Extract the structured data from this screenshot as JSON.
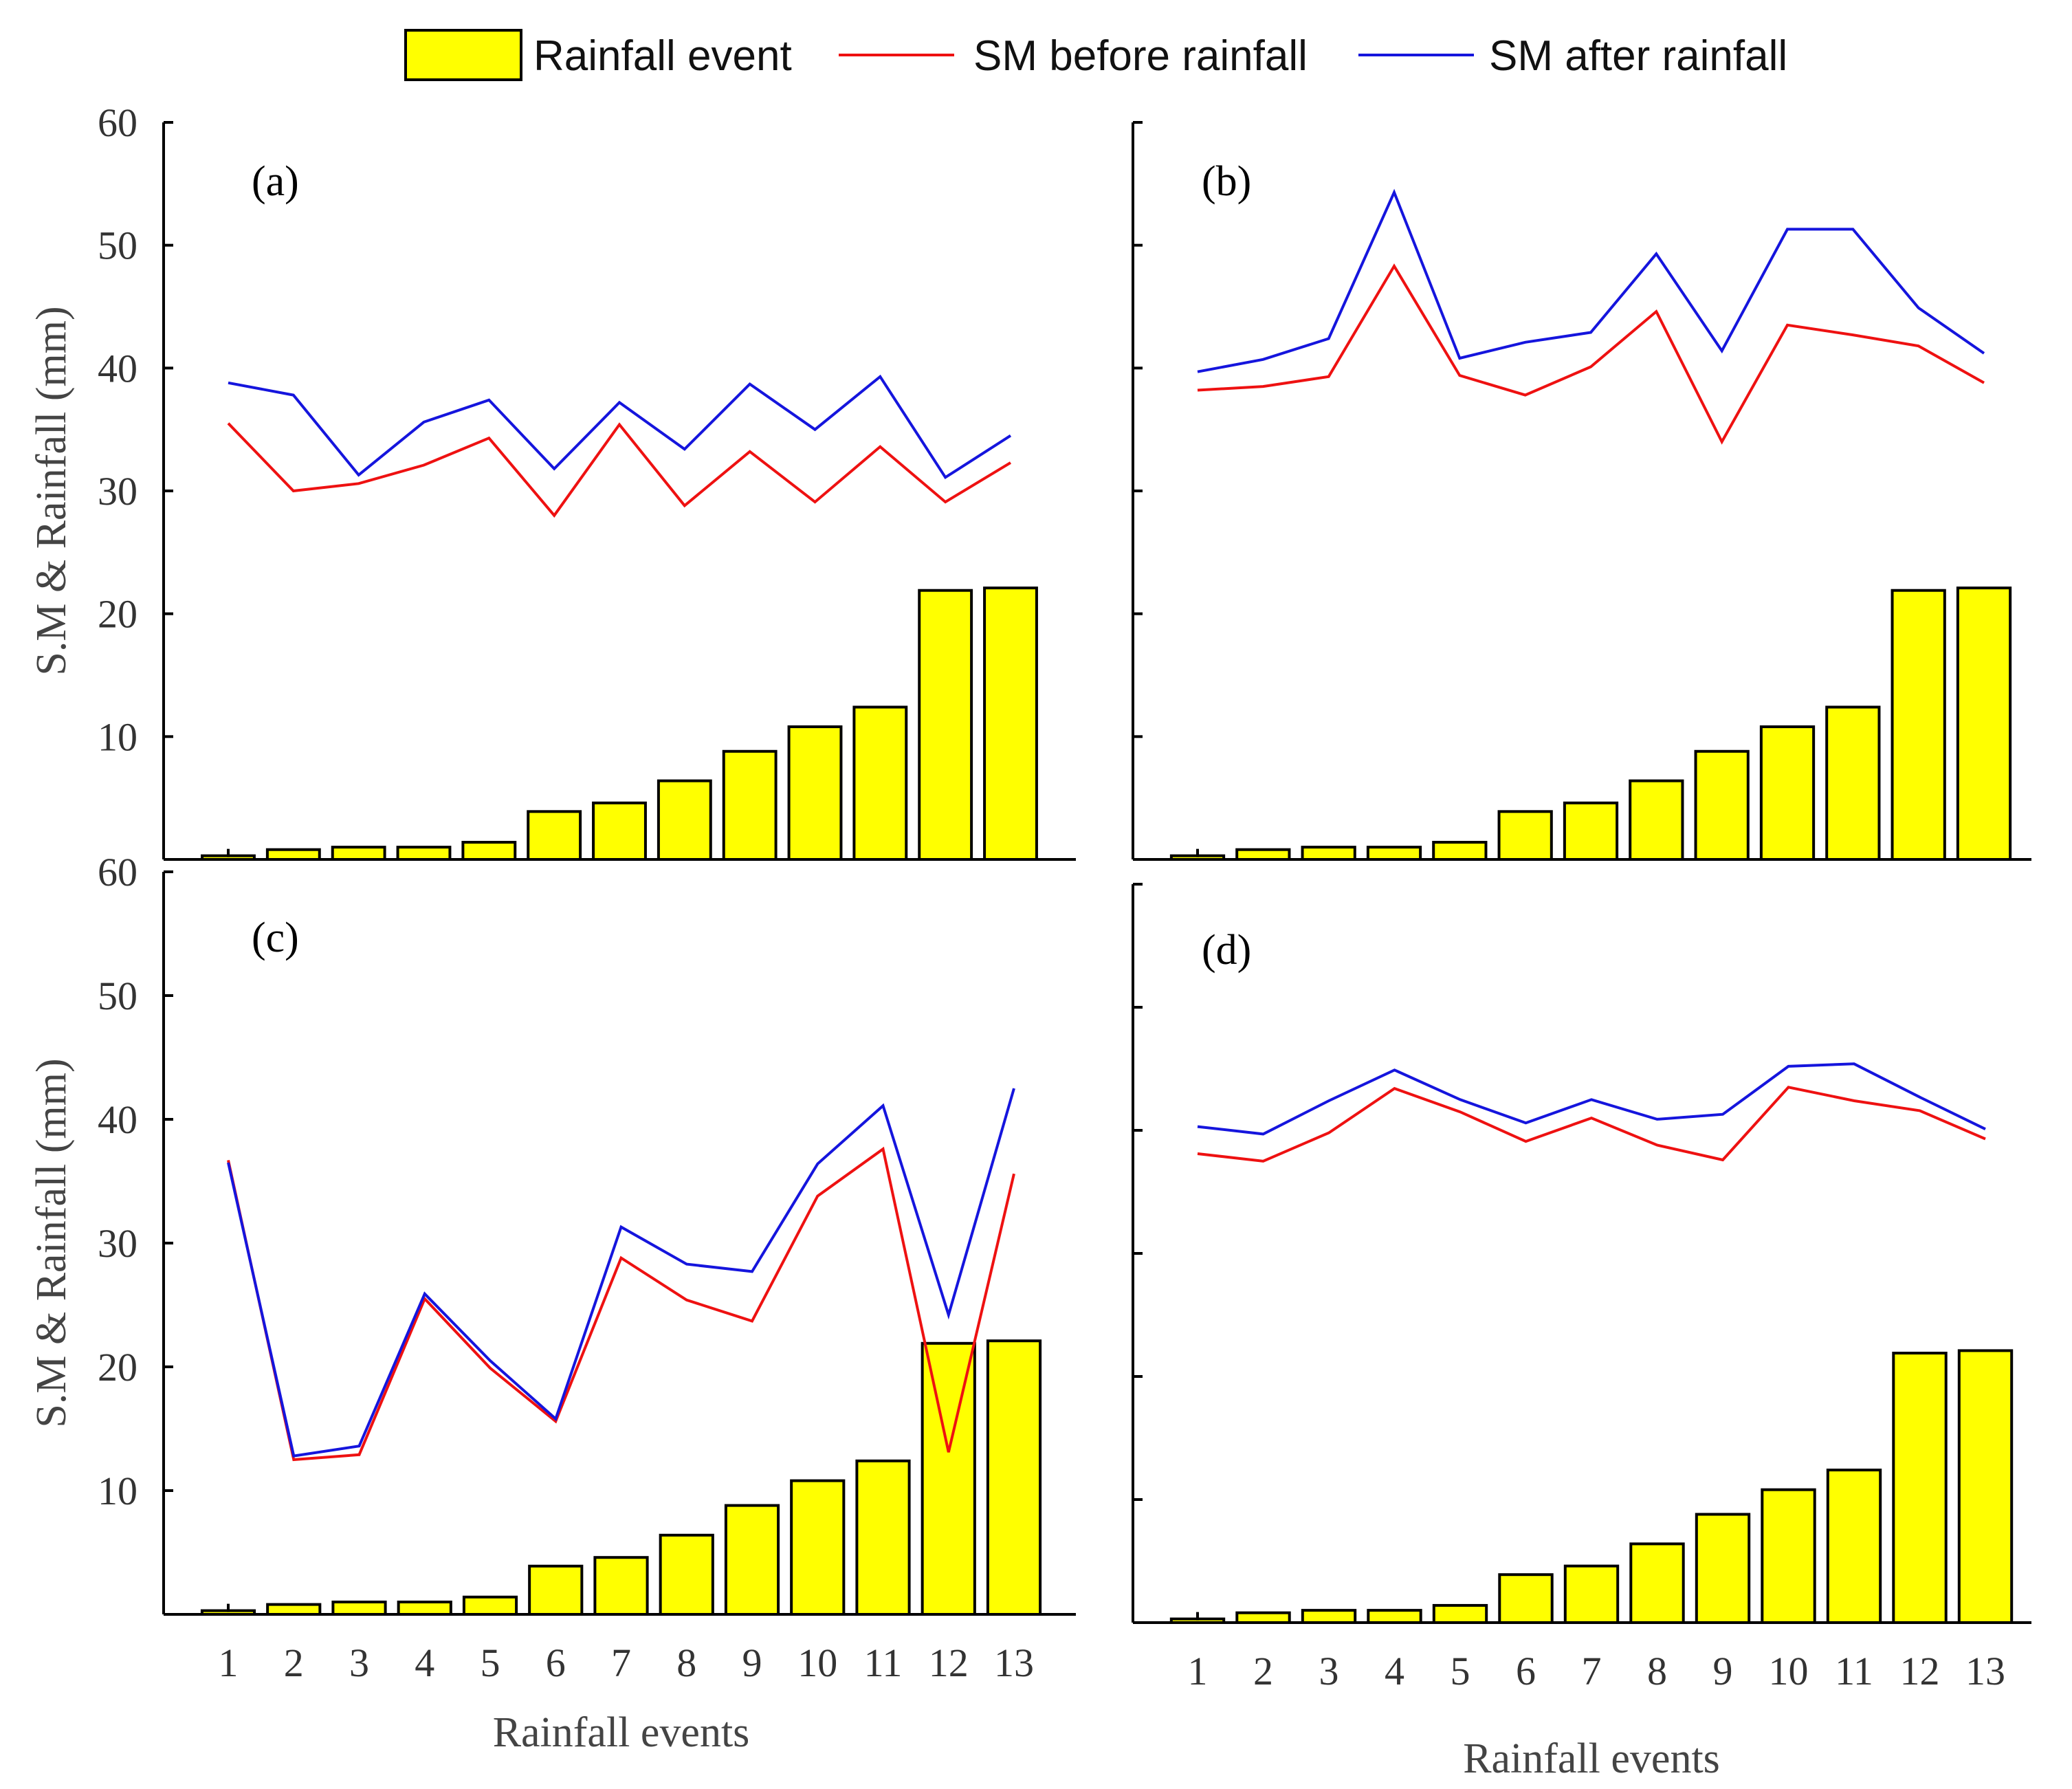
{
  "legend": {
    "bar_label": "Rainfall event",
    "before_label": "SM before rainfall",
    "after_label": "SM after rainfall"
  },
  "colors": {
    "bar": "#ffff00",
    "before": "#ee1111",
    "after": "#1515dd"
  },
  "chart_data": [
    {
      "type": "bar+line",
      "panel": "(a)",
      "categories": [
        "1",
        "2",
        "3",
        "4",
        "5",
        "6",
        "7",
        "8",
        "9",
        "10",
        "11",
        "12",
        "13"
      ],
      "ylabel": "S.M & Rainfall (mm)",
      "xlabel": "",
      "ylim": [
        0,
        60
      ],
      "yticks": [
        "10",
        "20",
        "30",
        "40",
        "50",
        "60"
      ],
      "show_x_ticklabels": false,
      "show_y_ticklabels": true,
      "series": [
        {
          "name": "Rainfall event",
          "kind": "bar",
          "values": [
            0.3,
            0.8,
            1.0,
            1.0,
            1.4,
            3.9,
            4.6,
            6.4,
            8.8,
            10.8,
            12.4,
            21.9,
            22.1
          ]
        },
        {
          "name": "SM before rainfall",
          "kind": "line",
          "values": [
            35.5,
            30.0,
            30.6,
            32.1,
            34.3,
            28.0,
            35.4,
            28.8,
            33.2,
            29.1,
            33.6,
            29.1,
            32.3
          ]
        },
        {
          "name": "SM after rainfall",
          "kind": "line",
          "values": [
            38.8,
            37.8,
            31.3,
            35.6,
            37.4,
            31.8,
            37.2,
            33.4,
            38.7,
            35.0,
            39.3,
            31.1,
            34.5
          ]
        }
      ]
    },
    {
      "type": "bar+line",
      "panel": "(b)",
      "categories": [
        "1",
        "2",
        "3",
        "4",
        "5",
        "6",
        "7",
        "8",
        "9",
        "10",
        "11",
        "12",
        "13"
      ],
      "ylabel": "",
      "xlabel": "",
      "ylim": [
        0,
        60
      ],
      "yticks": [
        "10",
        "20",
        "30",
        "40",
        "50",
        "60"
      ],
      "show_x_ticklabels": false,
      "show_y_ticklabels": false,
      "series": [
        {
          "name": "Rainfall event",
          "kind": "bar",
          "values": [
            0.3,
            0.8,
            1.0,
            1.0,
            1.4,
            3.9,
            4.6,
            6.4,
            8.8,
            10.8,
            12.4,
            21.9,
            22.1
          ]
        },
        {
          "name": "SM before rainfall",
          "kind": "line",
          "values": [
            38.2,
            38.5,
            39.3,
            48.3,
            39.4,
            37.8,
            40.1,
            44.6,
            34.0,
            43.5,
            42.7,
            41.8,
            38.8
          ]
        },
        {
          "name": "SM after rainfall",
          "kind": "line",
          "values": [
            39.7,
            40.7,
            42.4,
            54.3,
            40.8,
            42.1,
            42.9,
            49.3,
            41.4,
            51.3,
            51.3,
            44.9,
            41.2
          ]
        }
      ]
    },
    {
      "type": "bar+line",
      "panel": "(c)",
      "categories": [
        "1",
        "2",
        "3",
        "4",
        "5",
        "6",
        "7",
        "8",
        "9",
        "10",
        "11",
        "12",
        "13"
      ],
      "ylabel": "S.M & Rainfall (mm)",
      "xlabel": "Rainfall events",
      "ylim": [
        0,
        60
      ],
      "yticks": [
        "10",
        "20",
        "30",
        "40",
        "50",
        "60"
      ],
      "show_x_ticklabels": true,
      "show_y_ticklabels": true,
      "series": [
        {
          "name": "Rainfall event",
          "kind": "bar",
          "values": [
            0.3,
            0.8,
            1.0,
            1.0,
            1.4,
            3.9,
            4.6,
            6.4,
            8.8,
            10.8,
            12.4,
            21.9,
            22.1
          ]
        },
        {
          "name": "SM before rainfall",
          "kind": "line",
          "values": [
            36.7,
            12.5,
            12.9,
            25.5,
            19.9,
            15.6,
            28.8,
            25.4,
            23.7,
            33.8,
            37.6,
            13.1,
            35.6
          ]
        },
        {
          "name": "SM after rainfall",
          "kind": "line",
          "values": [
            36.5,
            12.8,
            13.6,
            25.9,
            20.5,
            15.8,
            31.3,
            28.3,
            27.7,
            36.4,
            41.1,
            24.2,
            42.5
          ]
        }
      ]
    },
    {
      "type": "bar+line",
      "panel": "(d)",
      "categories": [
        "1",
        "2",
        "3",
        "4",
        "5",
        "6",
        "7",
        "8",
        "9",
        "10",
        "11",
        "12",
        "13"
      ],
      "ylabel": "",
      "xlabel": "Rainfall events",
      "ylim": [
        0,
        60
      ],
      "yticks": [
        "10",
        "20",
        "30",
        "40",
        "50",
        "60"
      ],
      "show_x_ticklabels": true,
      "show_y_ticklabels": false,
      "series": [
        {
          "name": "Rainfall event",
          "kind": "bar",
          "values": [
            0.3,
            0.8,
            1.0,
            1.0,
            1.4,
            3.9,
            4.6,
            6.4,
            8.8,
            10.8,
            12.4,
            21.9,
            22.1
          ]
        },
        {
          "name": "SM before rainfall",
          "kind": "line",
          "values": [
            38.1,
            37.5,
            39.8,
            43.4,
            41.5,
            39.1,
            41.0,
            38.8,
            37.6,
            43.5,
            42.4,
            41.6,
            39.3
          ]
        },
        {
          "name": "SM after rainfall",
          "kind": "line",
          "values": [
            40.3,
            39.7,
            42.4,
            44.9,
            42.5,
            40.6,
            42.5,
            40.9,
            41.3,
            45.2,
            45.4,
            42.7,
            40.1
          ]
        }
      ]
    }
  ]
}
